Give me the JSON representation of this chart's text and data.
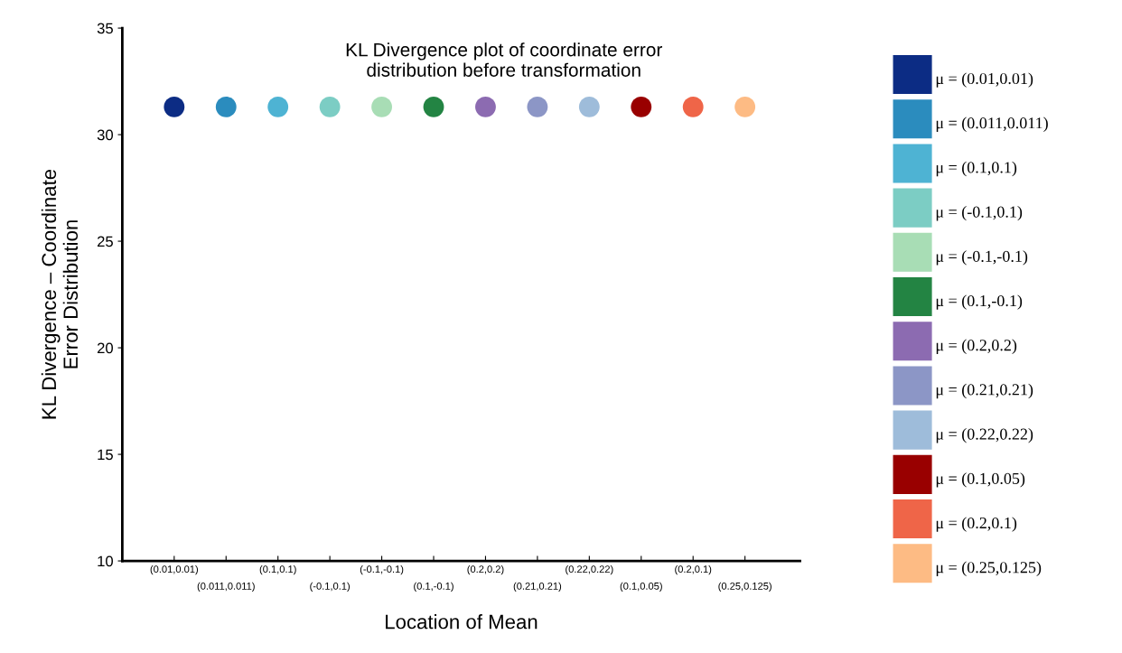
{
  "chart_data": {
    "type": "scatter",
    "title": "KL Divergence plot of coordinate error\ndistribution before transformation",
    "xlabel": "Location of Mean",
    "ylabel": "KL Divergence – Coordinate\nError Distribution",
    "categories": [
      "(0.01,0.01)",
      "(0.011,0.011)",
      "(0.1,0.1)",
      "(-0.1,0.1)",
      "(-0.1,-0.1)",
      "(0.1,-0.1)",
      "(0.2,0.2)",
      "(0.21,0.21)",
      "(0.22,0.22)",
      "(0.1,0.05)",
      "(0.2,0.1)",
      "(0.25,0.125)"
    ],
    "ylim": [
      10,
      35
    ],
    "yticks": [
      10,
      15,
      20,
      25,
      30,
      35
    ],
    "grid": false,
    "legend": "right",
    "marker": "circle",
    "series": [
      {
        "name": "μ = (0.01,0.01)",
        "color": "#0c2c84",
        "values": [
          31.3,
          null,
          null,
          null,
          null,
          null,
          null,
          null,
          null,
          null,
          null,
          null
        ]
      },
      {
        "name": "μ = (0.011,0.011)",
        "color": "#2b8cbe",
        "values": [
          null,
          31.3,
          null,
          null,
          null,
          null,
          null,
          null,
          null,
          null,
          null,
          null
        ]
      },
      {
        "name": "μ = (0.1,0.1)",
        "color": "#4eb3d3",
        "values": [
          null,
          null,
          31.3,
          null,
          null,
          null,
          null,
          null,
          null,
          null,
          null,
          null
        ]
      },
      {
        "name": "μ = (-0.1,0.1)",
        "color": "#7ccdc4",
        "values": [
          null,
          null,
          null,
          31.3,
          null,
          null,
          null,
          null,
          null,
          null,
          null,
          null
        ]
      },
      {
        "name": "μ = (-0.1,-0.1)",
        "color": "#a8ddb5",
        "values": [
          null,
          null,
          null,
          null,
          31.3,
          null,
          null,
          null,
          null,
          null,
          null,
          null
        ]
      },
      {
        "name": "μ = (0.1,-0.1)",
        "color": "#238443",
        "values": [
          null,
          null,
          null,
          null,
          null,
          31.3,
          null,
          null,
          null,
          null,
          null,
          null
        ]
      },
      {
        "name": "μ = (0.2,0.2)",
        "color": "#8c6bb1",
        "values": [
          null,
          null,
          null,
          null,
          null,
          null,
          31.3,
          null,
          null,
          null,
          null,
          null
        ]
      },
      {
        "name": "μ = (0.21,0.21)",
        "color": "#8c96c6",
        "values": [
          null,
          null,
          null,
          null,
          null,
          null,
          null,
          31.3,
          null,
          null,
          null,
          null
        ]
      },
      {
        "name": "μ = (0.22,0.22)",
        "color": "#9ebcda",
        "values": [
          null,
          null,
          null,
          null,
          null,
          null,
          null,
          null,
          31.3,
          null,
          null,
          null
        ]
      },
      {
        "name": "μ = (0.1,0.05)",
        "color": "#990000",
        "values": [
          null,
          null,
          null,
          null,
          null,
          null,
          null,
          null,
          null,
          31.3,
          null,
          null
        ]
      },
      {
        "name": "μ = (0.2,0.1)",
        "color": "#ef6548",
        "values": [
          null,
          null,
          null,
          null,
          null,
          null,
          null,
          null,
          null,
          null,
          31.3,
          null
        ]
      },
      {
        "name": "μ = (0.25,0.125)",
        "color": "#fdbb84",
        "values": [
          null,
          null,
          null,
          null,
          null,
          null,
          null,
          null,
          null,
          null,
          null,
          31.3
        ]
      }
    ]
  }
}
